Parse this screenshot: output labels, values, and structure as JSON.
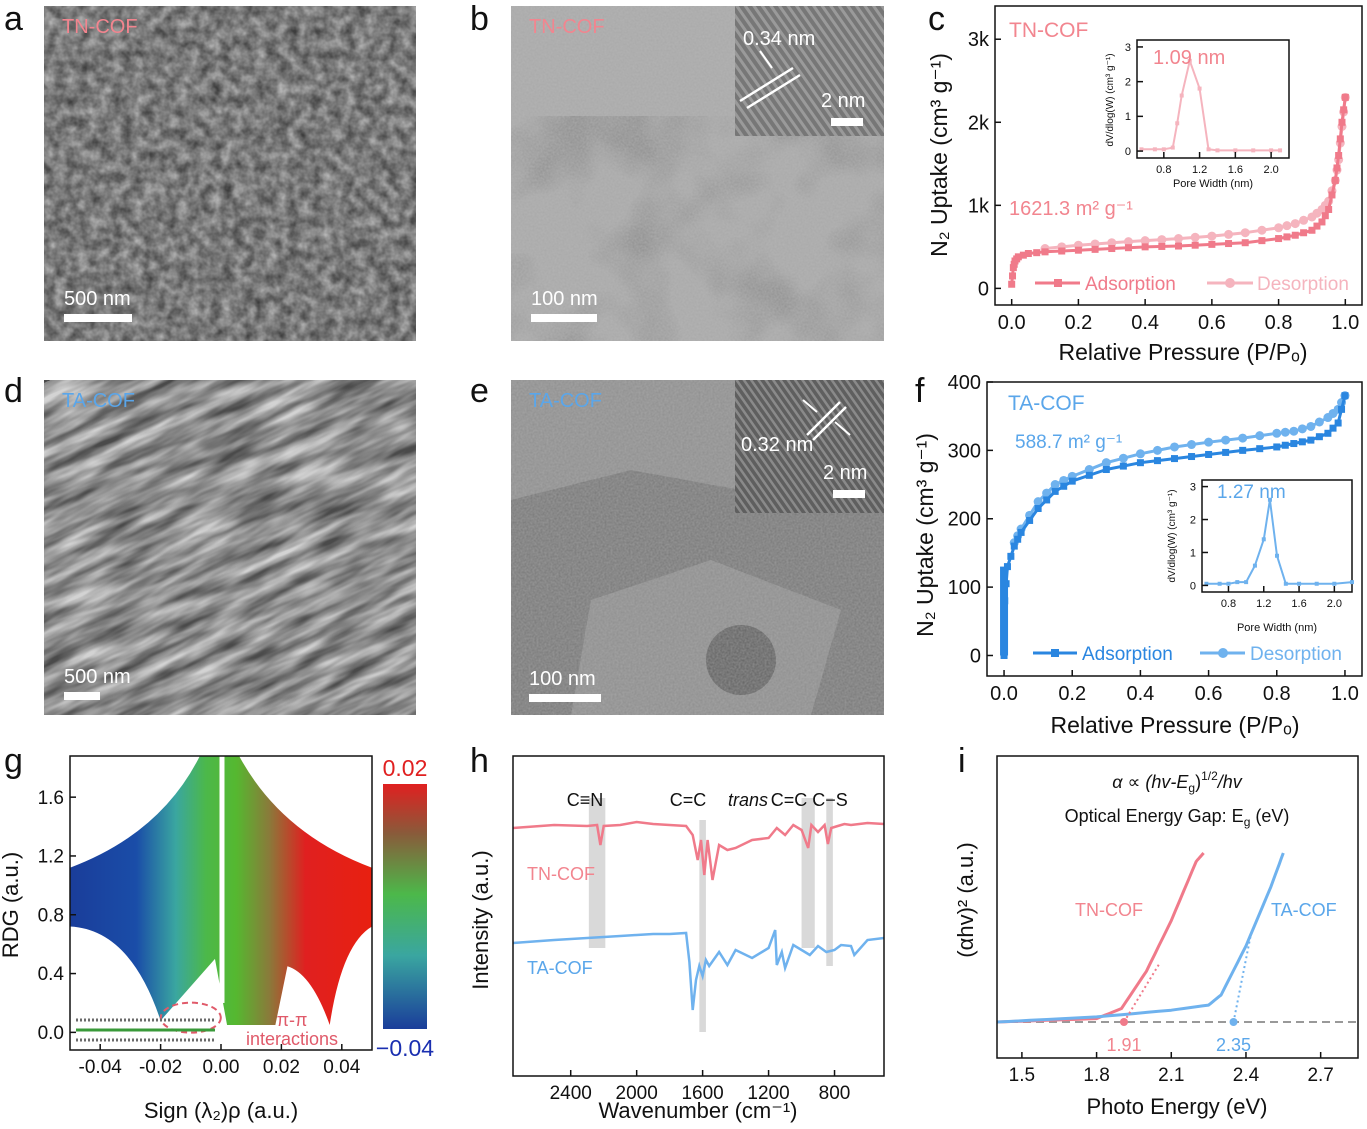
{
  "labels": {
    "a": "a",
    "b": "b",
    "c": "c",
    "d": "d",
    "e": "e",
    "f": "f",
    "g": "g",
    "h": "h",
    "i": "i"
  },
  "colors": {
    "tn": "#f07a8a",
    "tn_light": "#f5b4be",
    "ta": "#2a86e0",
    "ta_light": "#6fb2ee",
    "tn_text": "#f2858f",
    "ta_text": "#5aa6ea"
  },
  "a": {
    "sample": "TN-COF",
    "scale": "500 nm"
  },
  "b": {
    "sample": "TN-COF",
    "scale": "100 nm",
    "inset_dist": "0.34 nm",
    "inset_scale": "2 nm"
  },
  "d": {
    "sample": "TA-COF",
    "scale": "500 nm"
  },
  "e": {
    "sample": "TA-COF",
    "scale": "100 nm",
    "inset_dist": "0.32 nm",
    "inset_scale": "2 nm"
  },
  "c": {
    "sample": "TN-COF",
    "surface_area": "1621.3 m² g⁻¹",
    "ylabel": "N₂ Uptake (cm³ g⁻¹)",
    "xlabel": "Relative Pressure (P/Pₒ)",
    "yticks": [
      "0",
      "1k",
      "2k",
      "3k"
    ],
    "xticks": [
      "0.0",
      "0.2",
      "0.4",
      "0.6",
      "0.8",
      "1.0"
    ],
    "legend_ads": "Adsorption",
    "legend_des": "Desorption",
    "inset_peak": "1.09 nm",
    "inset_ylabel": "dV/dlog(W) (cm³ g⁻¹)",
    "inset_xlabel": "Pore Width (nm)",
    "inset_xticks": [
      "0.8",
      "1.2",
      "1.6",
      "2.0"
    ],
    "inset_yticks": [
      "0",
      "1",
      "2",
      "3"
    ]
  },
  "f": {
    "sample": "TA-COF",
    "surface_area": "588.7 m² g⁻¹",
    "ylabel": "N₂ Uptake (cm³ g⁻¹)",
    "xlabel": "Relative Pressure (P/Pₒ)",
    "yticks": [
      "0",
      "100",
      "200",
      "300",
      "400"
    ],
    "xticks": [
      "0.0",
      "0.2",
      "0.4",
      "0.6",
      "0.8",
      "1.0"
    ],
    "legend_ads": "Adsorption",
    "legend_des": "Desorption",
    "inset_peak": "1.27 nm",
    "inset_ylabel": "dV/dlog(W) (cm³ g⁻¹)",
    "inset_xlabel": "Pore Width (nm)",
    "inset_xticks": [
      "0.8",
      "1.2",
      "1.6",
      "2.0"
    ],
    "inset_yticks": [
      "0",
      "1",
      "2",
      "3"
    ]
  },
  "g": {
    "ylabel": "RDG (a.u.)",
    "xlabel": "Sign (λ₂)ρ (a.u.)",
    "yticks": [
      "0.0",
      "0.4",
      "0.8",
      "1.2",
      "1.6"
    ],
    "xticks": [
      "-0.04",
      "-0.02",
      "0.00",
      "0.02",
      "0.04"
    ],
    "cbar_top": "0.02",
    "cbar_bottom": "−0.04",
    "annotation": "π-π\ninteractions"
  },
  "h": {
    "ylabel": "Intensity (a.u.)",
    "xlabel": "Wavenumber (cm⁻¹)",
    "xticks": [
      "2400",
      "2000",
      "1600",
      "1200",
      "800"
    ],
    "peak_cn": "C≡N",
    "peak_cc": "C=C",
    "peak_trans": "trans",
    "peak_trans_cc": "C=C",
    "peak_cs": "C−S",
    "tn_label": "TN-COF",
    "ta_label": "TA-COF"
  },
  "i": {
    "eq": "α ∝ (hv-E_g)^(1/2)/hv",
    "eq_pre": "α ∝ (hv-E",
    "eq_sub": "g",
    "eq_sup": "1/2",
    "eq_post": "/hv",
    "gap_title": "Optical Energy Gap: E",
    "gap_sub": "g",
    "gap_post": " (eV)",
    "ylabel": "(αhv)² (a.u.)",
    "xlabel": "Photo Energy (eV)",
    "xticks": [
      "1.5",
      "1.8",
      "2.1",
      "2.4",
      "2.7"
    ],
    "tn_label": "TN-COF",
    "ta_label": "TA-COF",
    "tn_gap": "1.91",
    "ta_gap": "2.35"
  },
  "chart_data": [
    {
      "type": "line",
      "title": "",
      "xlabel": "Relative Pressure (P/Pₒ)",
      "ylabel": "N₂ Uptake (cm³ g⁻¹)",
      "xlim": [
        -0.05,
        1.05
      ],
      "ylim": [
        -200,
        3400
      ],
      "series": [
        {
          "name": "Adsorption",
          "x": [
            0,
            0.005,
            0.01,
            0.02,
            0.05,
            0.1,
            0.2,
            0.3,
            0.4,
            0.5,
            0.6,
            0.7,
            0.8,
            0.85,
            0.9,
            0.93,
            0.95,
            0.97,
            0.98,
            0.99,
            1.0
          ],
          "y": [
            50,
            250,
            330,
            380,
            420,
            440,
            460,
            480,
            500,
            510,
            530,
            550,
            600,
            640,
            700,
            800,
            950,
            1300,
            1600,
            2000,
            2300
          ]
        },
        {
          "name": "Desorption",
          "x": [
            0.1,
            0.2,
            0.3,
            0.4,
            0.5,
            0.6,
            0.7,
            0.8,
            0.85,
            0.9,
            0.93,
            0.95,
            0.97,
            0.98,
            0.99,
            1.0
          ],
          "y": [
            480,
            520,
            550,
            575,
            600,
            630,
            670,
            730,
            780,
            860,
            950,
            1050,
            1300,
            1550,
            1950,
            2300
          ]
        }
      ]
    },
    {
      "type": "line",
      "title": "",
      "xlabel": "Pore Width (nm)",
      "ylabel": "dV/dlog(W) (cm³ g⁻¹)",
      "xlim": [
        0.5,
        2.2
      ],
      "ylim": [
        -0.2,
        3.2
      ],
      "series": [
        {
          "name": "",
          "x": [
            0.55,
            0.7,
            0.8,
            0.9,
            0.95,
            1.0,
            1.09,
            1.2,
            1.3,
            1.4,
            1.6,
            1.8,
            2.0,
            2.1
          ],
          "y": [
            0.05,
            0.05,
            0.05,
            0.1,
            0.8,
            1.6,
            2.6,
            1.8,
            0.05,
            0.02,
            0.02,
            0.02,
            0.02,
            0.02
          ]
        }
      ]
    },
    {
      "type": "line",
      "title": "",
      "xlabel": "Relative Pressure (P/Pₒ)",
      "ylabel": "N₂ Uptake (cm³ g⁻¹)",
      "xlim": [
        -0.05,
        1.05
      ],
      "ylim": [
        -30,
        400
      ],
      "series": [
        {
          "name": "Adsorption",
          "x": [
            0,
            0.002,
            0.01,
            0.03,
            0.05,
            0.1,
            0.15,
            0.2,
            0.3,
            0.4,
            0.5,
            0.6,
            0.7,
            0.8,
            0.85,
            0.9,
            0.95,
            0.98,
            1.0
          ],
          "y": [
            0,
            80,
            130,
            160,
            180,
            215,
            240,
            255,
            272,
            282,
            288,
            294,
            300,
            305,
            310,
            315,
            325,
            340,
            380
          ]
        },
        {
          "name": "Desorption",
          "x": [
            0.03,
            0.05,
            0.1,
            0.15,
            0.2,
            0.3,
            0.4,
            0.5,
            0.6,
            0.7,
            0.8,
            0.85,
            0.9,
            0.95,
            0.98,
            1.0
          ],
          "y": [
            165,
            185,
            225,
            250,
            262,
            282,
            295,
            305,
            312,
            318,
            325,
            328,
            335,
            348,
            360,
            380
          ]
        }
      ]
    },
    {
      "type": "line",
      "title": "",
      "xlabel": "Pore Width (nm)",
      "ylabel": "dV/dlog(W) (cm³ g⁻¹)",
      "xlim": [
        0.5,
        2.2
      ],
      "ylim": [
        -0.2,
        3.2
      ],
      "series": [
        {
          "name": "",
          "x": [
            0.55,
            0.7,
            0.8,
            0.9,
            1.0,
            1.1,
            1.2,
            1.27,
            1.35,
            1.45,
            1.6,
            1.8,
            2.0,
            2.2
          ],
          "y": [
            0.05,
            0.05,
            0.05,
            0.1,
            0.1,
            0.6,
            1.4,
            2.6,
            0.9,
            0.05,
            0.05,
            0.05,
            0.05,
            0.1
          ]
        }
      ]
    },
    {
      "type": "line",
      "title": "",
      "xlabel": "Wavenumber (cm⁻¹)",
      "ylabel": "Intensity (a.u.)",
      "xlim": [
        2700,
        500
      ],
      "series": [
        {
          "name": "TN-COF",
          "x": [],
          "y": []
        },
        {
          "name": "TA-COF",
          "x": [],
          "y": []
        }
      ]
    },
    {
      "type": "line",
      "title": "",
      "xlabel": "Photo Energy (eV)",
      "ylabel": "(αhv)² (a.u.)",
      "xlim": [
        1.4,
        2.85
      ],
      "series": [
        {
          "name": "TN-COF",
          "x": [
            1.4,
            1.6,
            1.8,
            1.9,
            2.0,
            2.1,
            2.2,
            2.23
          ],
          "y": [
            0,
            0.01,
            0.02,
            0.08,
            0.3,
            0.6,
            0.95,
            1.0
          ]
        },
        {
          "name": "TA-COF",
          "x": [
            1.4,
            1.8,
            2.1,
            2.25,
            2.3,
            2.4,
            2.5,
            2.55
          ],
          "y": [
            0,
            0.03,
            0.07,
            0.1,
            0.16,
            0.45,
            0.8,
            1.0
          ]
        }
      ]
    }
  ]
}
